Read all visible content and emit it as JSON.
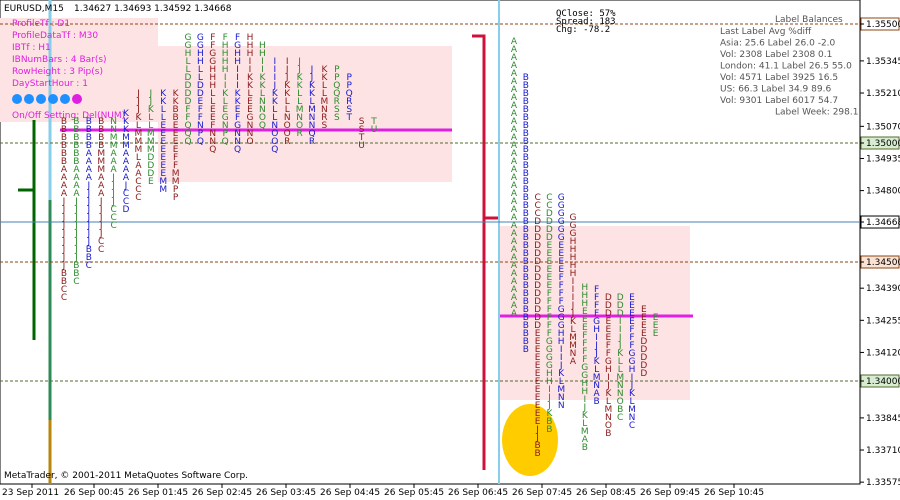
{
  "header": {
    "symbol": "EURUSD,M15",
    "quote": "1.34627 1.34693 1.34592 1.34668"
  },
  "settings": [
    "ProfileTf : D1",
    "ProfileDataTf : M30",
    "IBTf : H1",
    "IBNumBars : 4 Bar(s)",
    "RowHeight : 3 Pip(s)",
    "DayStartHour : 1",
    "On/Off Setting: Del(NUM)"
  ],
  "stats": [
    "QClose: 57%",
    "Spread: 183",
    "Chg: -78.2"
  ],
  "balances": {
    "title": "Label Balances",
    "rows": [
      "Last Label Avg  %diff",
      "Asia: 25.6 Label 26.0  -2.0",
      "Vol: 2308 Label 2308  0.1",
      "London: 41.1 Label 26.5  55.0",
      "Vol: 4571 Label 3925  16.5",
      "US: 66.3 Label 34.9  89.6",
      "Vol: 9301 Label 6017  54.7",
      "Label Week: 298.1"
    ]
  },
  "price_axis": [
    {
      "text": "1.35500",
      "box": "#ffffff",
      "border": "#8b4513"
    },
    {
      "text": "1.35345"
    },
    {
      "text": "1.35210"
    },
    {
      "text": "1.35070"
    },
    {
      "text": "1.35000",
      "box": "#d7ecd0",
      "border": "#556b2f"
    },
    {
      "text": "1.34935"
    },
    {
      "text": "1.34800"
    },
    {
      "text": "1.34668",
      "box": "#ffffff",
      "border": "#000000"
    },
    {
      "text": "1.34500",
      "box": "#fbe3d4",
      "border": "#8b4513"
    },
    {
      "text": "1.34390"
    },
    {
      "text": "1.34255"
    },
    {
      "text": "1.34120"
    },
    {
      "text": "1.34000",
      "box": "#d7ecd0",
      "border": "#556b2f"
    },
    {
      "text": "1.33845"
    },
    {
      "text": "1.33710"
    },
    {
      "text": "1.33575"
    }
  ],
  "time_axis": [
    "23 Sep 2011",
    "26 Sep 00:45",
    "26 Sep 01:45",
    "26 Sep 02:45",
    "26 Sep 03:45",
    "26 Sep 04:45",
    "26 Sep 05:45",
    "26 Sep 06:45",
    "26 Sep 07:45",
    "26 Sep 08:45",
    "26 Sep 09:45",
    "26 Sep 10:45"
  ],
  "profile_left": [
    "BBBBBBAAAAJJJJJJJJJBBCC",
    "BBBBBBAAAAJJJJJJJJBBC",
    "BBBBAAAAJJJJJJJJBBC",
    "BBBBMMMAAAJJJJJCC",
    "NNMMAAAJJJJCCC",
    "KKKMMAAAAJCCD",
    "JJJKLMMMLAACCC",
    "JJKLLMMMDDDE",
    "KKLLEEEEEEEMM",
    "KKBBEEEEFFMMPP",
    "GGHLLDDDDFFQQQ",
    "GGHHLLDDEFFNPQ",
    "FFGGHHHLLEEFNNQ",
    "FHHHHIIKLEGNPQ",
    "FGHHIIIKKEFGNNQ",
    "HHHIIKKLEEGNNO",
    "HHIIKKLNNOQ",
    "IIIJKKLLNOOQ",
    "IJJKKLLNOOR",
    "JJKKLLMNOR",
    "JJKKLMNNQR",
    "KKLLMNRS",
    "PPQQRSS",
    "PPQRST",
    "SSTU",
    "TU"
  ],
  "profile_right": [
    "AAAAAAAAAAAAAAAAAAAAAAAAAAAAAAAAAAA",
    "BBBBBBBBBBBBBBBBBBBBBBBBBBBBBBBBBBB",
    "CCCDDDDDDDDDDDDDDEEEEEEEEEEEEJJBB",
    "CCDDDDEEEEEEFFFFFFGGGGHHIJJKBB",
    "GGGGGGEEEEFFFFGGGHHIIJKLMNN",
    "GGGHHHHHIIIJJKLMMNA",
    "HHHEEEFFFFGGHHIJKLMAB",
    "FFFFGHIJJKLMNAB",
    "DDDEEEFFGHIJKLMNOB",
    "DDDIIJJKLLMNNOBC",
    "EEEEFFFGGHIJKLMNC",
    "EEEEDDDDD",
    "EEE"
  ]
}
